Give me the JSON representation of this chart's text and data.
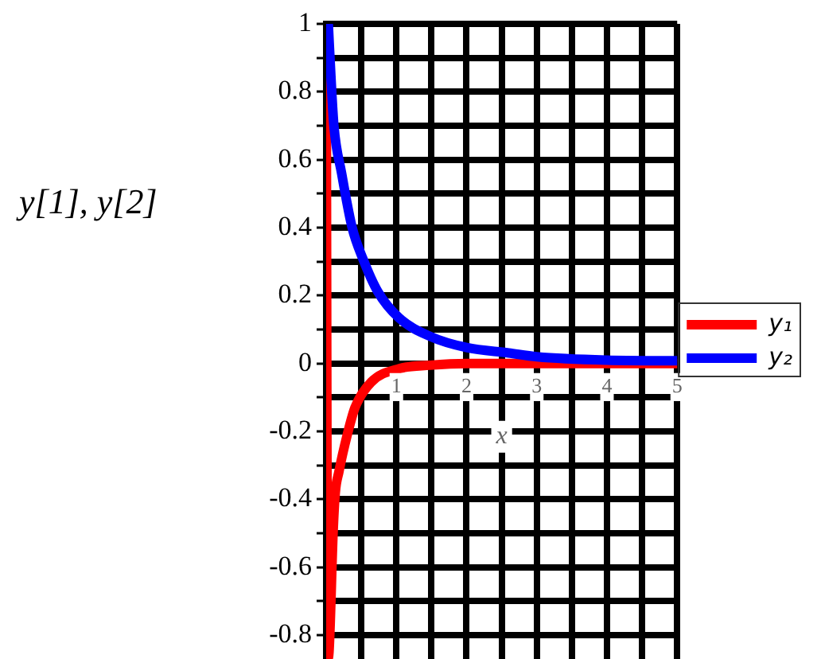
{
  "chart_data": {
    "type": "line",
    "xlabel": "x",
    "ylabel": "y[1], y[2]",
    "xlim": [
      0,
      5
    ],
    "ylim": [
      -0.87,
      1
    ],
    "xticks": [
      {
        "value": 0,
        "label": null
      },
      {
        "value": 0.5,
        "label": null
      },
      1,
      {
        "value": 1.5,
        "label": null
      },
      2,
      {
        "value": 2.5,
        "label": null
      },
      3,
      {
        "value": 3.5,
        "label": null
      },
      4,
      {
        "value": 4.5,
        "label": null
      },
      5
    ],
    "yticks": [
      1,
      {
        "value": 0.9,
        "label": null
      },
      0.8,
      {
        "value": 0.7,
        "label": null
      },
      0.6,
      {
        "value": 0.5,
        "label": null
      },
      0.4,
      {
        "value": 0.3,
        "label": null
      },
      0.2,
      {
        "value": 0.1,
        "label": null
      },
      0,
      {
        "value": -0.1,
        "label": null
      },
      -0.2,
      {
        "value": -0.3,
        "label": null
      },
      -0.4,
      {
        "value": -0.5,
        "label": null
      },
      -0.6,
      {
        "value": -0.7,
        "label": null
      },
      -0.8
    ],
    "grid": true,
    "legend": "right",
    "marker": "none",
    "line_style": "solid",
    "series": [
      {
        "name": "y₁",
        "color": "#ff0000",
        "x": [
          0,
          0.02,
          0.04,
          0.1,
          0.13,
          0.18,
          0.3,
          0.41,
          0.64,
          1.04,
          1.48,
          2,
          3,
          5
        ],
        "values": [
          1,
          -0.87,
          -0.85,
          -0.49,
          -0.38,
          -0.32,
          -0.21,
          -0.13,
          -0.055,
          -0.015,
          -0.005,
          0,
          0,
          0
        ]
      },
      {
        "name": "y₂",
        "color": "#0000ff",
        "x": [
          0.03,
          0.07,
          0.11,
          0.22,
          0.37,
          0.52,
          0.74,
          1.04,
          1.48,
          2,
          2.6,
          3,
          4,
          5
        ],
        "values": [
          1,
          0.835,
          0.7,
          0.56,
          0.4,
          0.31,
          0.21,
          0.134,
          0.08,
          0.047,
          0.031,
          0.02,
          0.01,
          0.008
        ]
      }
    ]
  }
}
